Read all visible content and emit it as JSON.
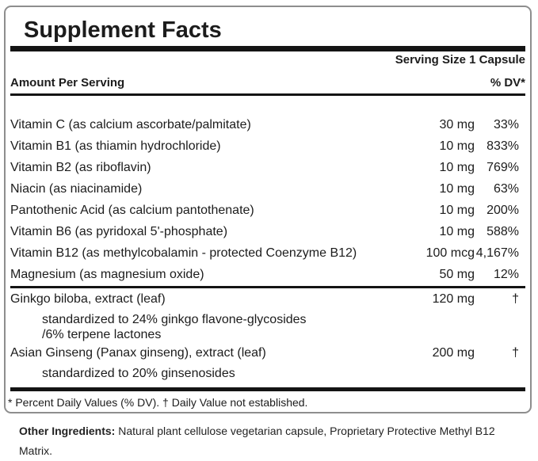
{
  "panel": {
    "title": "Supplement Facts",
    "serving_size": "Serving Size 1 Capsule",
    "columns": {
      "amount_header": "Amount Per Serving",
      "dv_header": "% DV*"
    },
    "rows": [
      {
        "name": "Vitamin C (as calcium ascorbate/palmitate)",
        "amount": "30 mg",
        "dv": "33%"
      },
      {
        "name": "Vitamin B1 (as thiamin hydrochloride)",
        "amount": "10 mg",
        "dv": "833%"
      },
      {
        "name": "Vitamin B2 (as riboflavin)",
        "amount": "10 mg",
        "dv": "769%"
      },
      {
        "name": "Niacin (as niacinamide)",
        "amount": "10 mg",
        "dv": "63%"
      },
      {
        "name": "Pantothenic Acid (as calcium pantothenate)",
        "amount": "10 mg",
        "dv": "200%"
      },
      {
        "name": "Vitamin B6 (as pyridoxal 5'-phosphate)",
        "amount": "10 mg",
        "dv": "588%"
      },
      {
        "name": "Vitamin B12 (as methylcobalamin - protected Coenzyme B12)",
        "amount": "100 mcg",
        "dv": "4,167%"
      },
      {
        "name": "Magnesium (as magnesium oxide)",
        "amount": "50 mg",
        "dv": "12%"
      }
    ],
    "botanical_rows": [
      {
        "name": "Ginkgo biloba, extract (leaf)",
        "amount": "120 mg",
        "dv": "†",
        "sub": [
          "standardized to 24% ginkgo flavone-glycosides",
          "/6% terpene lactones"
        ]
      },
      {
        "name": "Asian Ginseng (Panax ginseng), extract (leaf)",
        "amount": "200 mg",
        "dv": "†",
        "sub": [
          "standardized to 20% ginsenosides"
        ]
      }
    ],
    "footnote": "* Percent Daily Values (% DV). † Daily Value not established."
  },
  "other_ingredients": {
    "label": "Other Ingredients:",
    "text": " Natural plant cellulose vegetarian capsule, Proprietary Protective Methyl B12 Matrix."
  },
  "colors": {
    "line": "#141414",
    "border": "#8e8e8e",
    "text": "#1c1c1c"
  }
}
